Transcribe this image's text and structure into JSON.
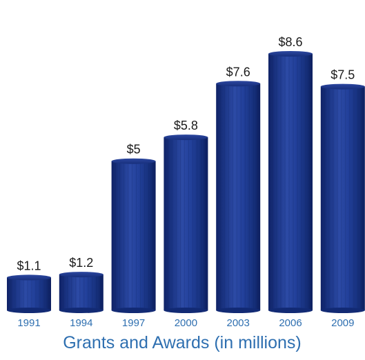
{
  "chart_data": {
    "type": "bar",
    "title": "Grants and Awards (in millions)",
    "xlabel": "",
    "ylabel": "",
    "categories": [
      "1991",
      "1994",
      "1997",
      "2000",
      "2003",
      "2006",
      "2009"
    ],
    "values": [
      1.1,
      1.2,
      5,
      5.8,
      7.6,
      8.6,
      7.5
    ],
    "value_labels": [
      "$1.1",
      "$1.2",
      "$5",
      "$5.8",
      "$7.6",
      "$8.6",
      "$7.5"
    ],
    "ylim": [
      0,
      8.6
    ],
    "grid": false,
    "legend": "none",
    "colors": {
      "bar": "#1f3c8e",
      "bar_dark": "#10246a",
      "bar_light": "#3550a8",
      "value_text": "#1a1a1a",
      "axis_text": "#2e6fb0"
    }
  }
}
